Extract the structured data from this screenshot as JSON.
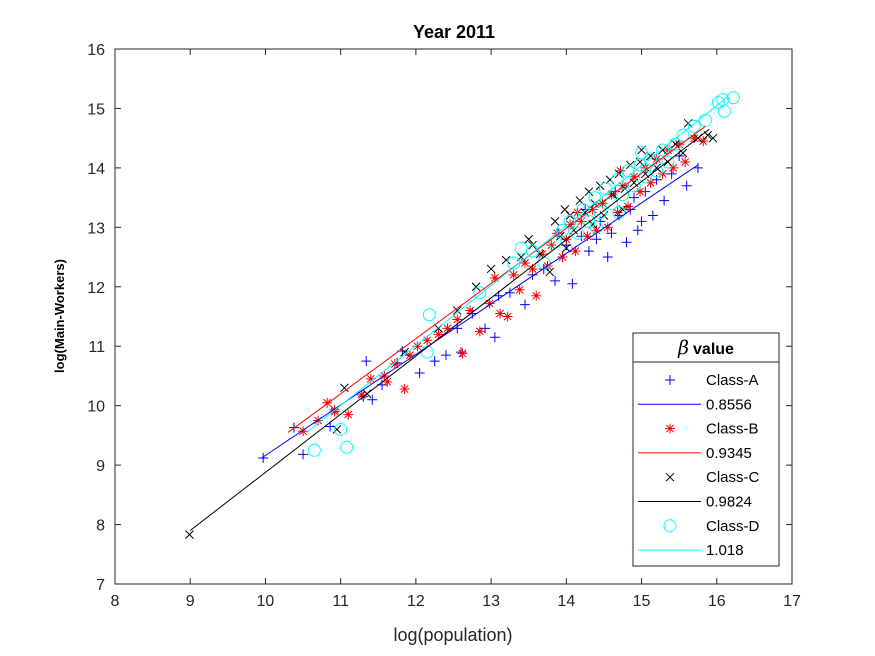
{
  "chart_data": {
    "type": "scatter",
    "title": "Year 2011",
    "xlabel": "log(population)",
    "ylabel": "log(Main-Workers)",
    "xlim": [
      8,
      17
    ],
    "ylim": [
      7,
      16
    ],
    "xticks": [
      8,
      9,
      10,
      11,
      12,
      13,
      14,
      15,
      16,
      17
    ],
    "yticks": [
      7,
      8,
      9,
      10,
      11,
      12,
      13,
      14,
      15,
      16
    ],
    "grid": false,
    "legend": {
      "placement": "bottom-right",
      "title_symbol": "β",
      "title_text": "value"
    },
    "series": [
      {
        "name": "Class-A",
        "marker": "plus",
        "color": "#0000ff",
        "fit_label": "0.8556",
        "fit": {
          "x": [
            9.95,
            15.75
          ],
          "y": [
            9.12,
            14.05
          ]
        },
        "points": [
          [
            9.97,
            9.12
          ],
          [
            10.38,
            9.63
          ],
          [
            10.5,
            9.18
          ],
          [
            10.86,
            9.65
          ],
          [
            11.3,
            10.15
          ],
          [
            11.34,
            10.75
          ],
          [
            11.42,
            10.1
          ],
          [
            11.55,
            10.35
          ],
          [
            11.75,
            10.72
          ],
          [
            11.82,
            10.92
          ],
          [
            12.05,
            10.55
          ],
          [
            12.25,
            10.75
          ],
          [
            12.4,
            10.85
          ],
          [
            12.55,
            11.3
          ],
          [
            12.6,
            10.9
          ],
          [
            12.75,
            11.55
          ],
          [
            12.92,
            11.3
          ],
          [
            13.05,
            11.15
          ],
          [
            13.1,
            11.85
          ],
          [
            13.25,
            11.9
          ],
          [
            13.45,
            11.7
          ],
          [
            13.55,
            12.2
          ],
          [
            13.7,
            12.3
          ],
          [
            13.85,
            12.1
          ],
          [
            13.95,
            12.5
          ],
          [
            14.0,
            12.7
          ],
          [
            14.08,
            12.05
          ],
          [
            14.2,
            12.85
          ],
          [
            14.3,
            12.6
          ],
          [
            14.4,
            12.8
          ],
          [
            14.45,
            13.1
          ],
          [
            14.55,
            12.5
          ],
          [
            14.6,
            12.9
          ],
          [
            14.7,
            13.2
          ],
          [
            14.8,
            12.75
          ],
          [
            14.85,
            13.3
          ],
          [
            14.9,
            13.5
          ],
          [
            15.0,
            13.1
          ],
          [
            15.05,
            13.6
          ],
          [
            15.15,
            13.2
          ],
          [
            15.2,
            13.8
          ],
          [
            15.3,
            13.45
          ],
          [
            15.4,
            13.9
          ],
          [
            15.5,
            14.2
          ],
          [
            15.6,
            13.7
          ],
          [
            15.75,
            14.0
          ],
          [
            14.25,
            13.3
          ],
          [
            13.9,
            12.9
          ],
          [
            14.65,
            13.6
          ],
          [
            14.95,
            12.95
          ]
        ]
      },
      {
        "name": "Class-B",
        "marker": "star",
        "color": "#ff0000",
        "fit_label": "0.9345",
        "fit": {
          "x": [
            10.3,
            15.85
          ],
          "y": [
            9.55,
            14.7
          ]
        },
        "points": [
          [
            10.5,
            9.57
          ],
          [
            10.7,
            9.75
          ],
          [
            10.82,
            10.05
          ],
          [
            10.92,
            9.9
          ],
          [
            11.1,
            9.85
          ],
          [
            11.28,
            10.18
          ],
          [
            11.4,
            10.45
          ],
          [
            11.58,
            10.5
          ],
          [
            11.72,
            10.7
          ],
          [
            11.85,
            10.28
          ],
          [
            11.92,
            10.85
          ],
          [
            12.02,
            11.0
          ],
          [
            12.15,
            11.1
          ],
          [
            12.3,
            11.2
          ],
          [
            12.42,
            11.3
          ],
          [
            12.55,
            11.45
          ],
          [
            12.62,
            10.88
          ],
          [
            12.72,
            11.6
          ],
          [
            12.85,
            11.25
          ],
          [
            12.98,
            11.72
          ],
          [
            13.05,
            12.15
          ],
          [
            13.12,
            11.55
          ],
          [
            13.22,
            11.5
          ],
          [
            13.3,
            12.2
          ],
          [
            13.38,
            11.95
          ],
          [
            13.45,
            12.4
          ],
          [
            13.55,
            12.3
          ],
          [
            13.6,
            11.85
          ],
          [
            13.68,
            12.55
          ],
          [
            13.75,
            12.35
          ],
          [
            13.8,
            12.7
          ],
          [
            13.88,
            12.9
          ],
          [
            13.95,
            12.5
          ],
          [
            14.0,
            12.8
          ],
          [
            14.05,
            13.05
          ],
          [
            14.12,
            12.6
          ],
          [
            14.2,
            13.1
          ],
          [
            14.28,
            12.85
          ],
          [
            14.35,
            13.3
          ],
          [
            14.4,
            12.95
          ],
          [
            14.48,
            13.4
          ],
          [
            14.55,
            13.0
          ],
          [
            14.6,
            13.55
          ],
          [
            14.68,
            13.25
          ],
          [
            14.75,
            13.7
          ],
          [
            14.82,
            13.35
          ],
          [
            14.9,
            13.85
          ],
          [
            14.98,
            13.6
          ],
          [
            15.05,
            14.0
          ],
          [
            15.12,
            13.75
          ],
          [
            15.2,
            14.15
          ],
          [
            15.28,
            13.9
          ],
          [
            15.35,
            14.3
          ],
          [
            15.42,
            14.0
          ],
          [
            15.5,
            14.4
          ],
          [
            15.58,
            14.1
          ],
          [
            15.7,
            14.5
          ],
          [
            15.82,
            14.45
          ],
          [
            10.92,
            9.93
          ],
          [
            11.62,
            10.4
          ],
          [
            14.15,
            13.25
          ],
          [
            14.72,
            13.95
          ]
        ]
      },
      {
        "name": "Class-C",
        "marker": "cross",
        "color": "#000000",
        "fit_label": "0.9824",
        "fit": {
          "x": [
            9.0,
            15.9
          ],
          "y": [
            7.9,
            14.65
          ]
        },
        "points": [
          [
            8.99,
            7.83
          ],
          [
            10.95,
            9.6
          ],
          [
            11.05,
            10.3
          ],
          [
            11.35,
            10.2
          ],
          [
            11.85,
            10.9
          ],
          [
            12.3,
            11.3
          ],
          [
            12.55,
            11.6
          ],
          [
            12.8,
            12.0
          ],
          [
            13.0,
            12.3
          ],
          [
            13.2,
            12.45
          ],
          [
            13.4,
            12.5
          ],
          [
            13.55,
            12.7
          ],
          [
            13.65,
            12.55
          ],
          [
            13.78,
            12.25
          ],
          [
            13.85,
            13.1
          ],
          [
            13.92,
            12.85
          ],
          [
            13.98,
            13.3
          ],
          [
            14.05,
            13.2
          ],
          [
            14.1,
            12.95
          ],
          [
            14.18,
            13.45
          ],
          [
            14.25,
            13.25
          ],
          [
            14.3,
            13.6
          ],
          [
            14.38,
            13.4
          ],
          [
            14.45,
            13.7
          ],
          [
            14.5,
            13.2
          ],
          [
            14.58,
            13.8
          ],
          [
            14.62,
            13.55
          ],
          [
            14.7,
            13.9
          ],
          [
            14.78,
            13.65
          ],
          [
            14.85,
            14.05
          ],
          [
            14.9,
            13.75
          ],
          [
            14.98,
            14.1
          ],
          [
            15.05,
            13.9
          ],
          [
            15.12,
            14.2
          ],
          [
            15.2,
            14.0
          ],
          [
            15.28,
            14.3
          ],
          [
            15.35,
            14.1
          ],
          [
            15.45,
            14.4
          ],
          [
            15.55,
            14.25
          ],
          [
            15.62,
            14.75
          ],
          [
            15.75,
            14.5
          ],
          [
            15.88,
            14.55
          ],
          [
            15.95,
            14.5
          ],
          [
            13.5,
            12.8
          ],
          [
            14.0,
            12.65
          ],
          [
            14.35,
            13.05
          ],
          [
            14.75,
            13.3
          ],
          [
            15.0,
            14.3
          ]
        ]
      },
      {
        "name": "Class-D",
        "marker": "circle",
        "color": "#00ffff",
        "fit_label": "1.018",
        "fit": {
          "x": [
            10.55,
            16.15
          ],
          "y": [
            9.55,
            15.2
          ]
        },
        "points": [
          [
            10.65,
            9.25
          ],
          [
            11.08,
            9.3
          ],
          [
            11.0,
            9.6
          ],
          [
            12.18,
            11.53
          ],
          [
            12.15,
            10.9
          ],
          [
            12.85,
            11.9
          ],
          [
            13.3,
            12.4
          ],
          [
            13.55,
            12.6
          ],
          [
            13.7,
            12.4
          ],
          [
            13.85,
            12.75
          ],
          [
            13.95,
            12.95
          ],
          [
            14.05,
            13.1
          ],
          [
            14.15,
            12.9
          ],
          [
            14.22,
            13.3
          ],
          [
            14.3,
            13.1
          ],
          [
            14.38,
            13.5
          ],
          [
            14.45,
            13.25
          ],
          [
            14.52,
            13.65
          ],
          [
            14.6,
            13.4
          ],
          [
            14.68,
            13.8
          ],
          [
            14.75,
            13.55
          ],
          [
            14.82,
            13.95
          ],
          [
            14.9,
            13.7
          ],
          [
            14.98,
            14.05
          ],
          [
            15.05,
            13.85
          ],
          [
            15.12,
            14.15
          ],
          [
            15.2,
            13.95
          ],
          [
            15.28,
            14.3
          ],
          [
            15.35,
            14.1
          ],
          [
            15.45,
            14.4
          ],
          [
            15.55,
            14.55
          ],
          [
            15.7,
            14.7
          ],
          [
            15.85,
            14.8
          ],
          [
            16.02,
            15.1
          ],
          [
            16.08,
            15.15
          ],
          [
            16.1,
            14.95
          ],
          [
            16.22,
            15.18
          ],
          [
            13.4,
            12.65
          ],
          [
            14.4,
            13.0
          ],
          [
            14.7,
            13.25
          ],
          [
            15.0,
            14.25
          ]
        ]
      }
    ]
  }
}
